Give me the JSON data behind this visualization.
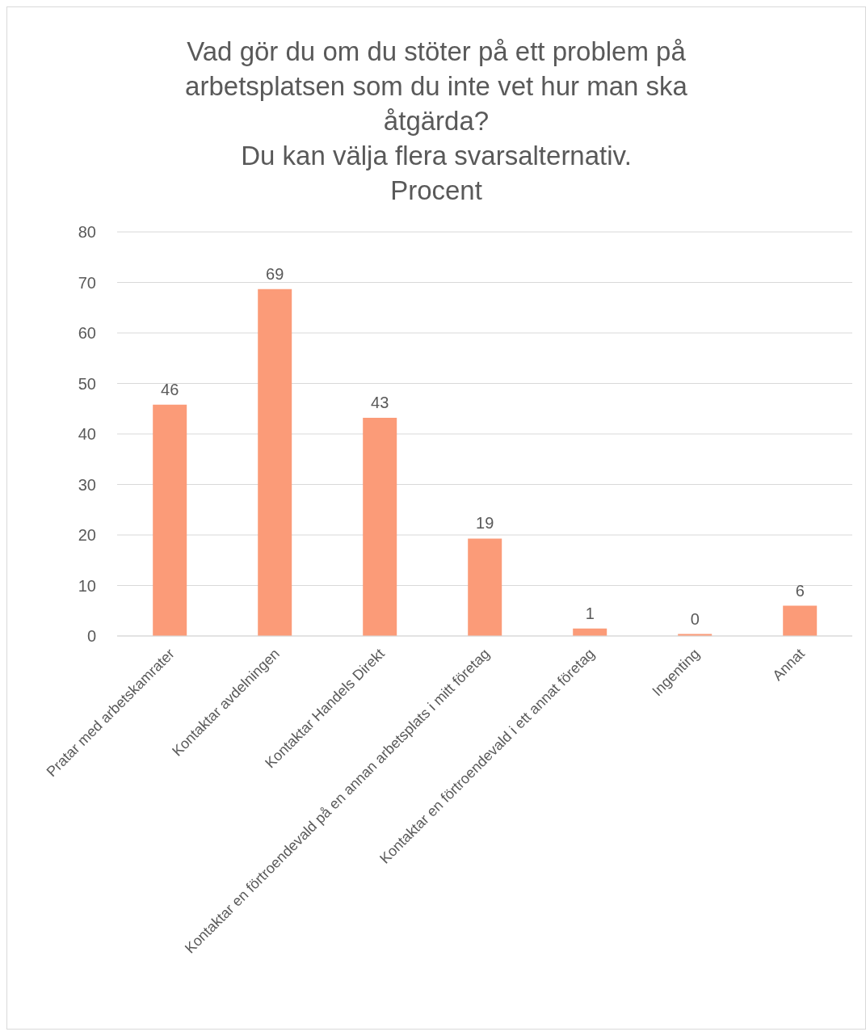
{
  "chart_data": {
    "type": "bar",
    "title": "Vad gör du om du stöter på ett problem på arbetsplatsen som du inte vet hur man ska åtgärda?",
    "subtitle": "Du kan välja flera svarsalternativ.",
    "ylabel": "Procent",
    "categories": [
      "Pratar med arbetskamrater",
      "Kontaktar avdelningen",
      "Kontaktar Handels Direkt",
      "Kontaktar en förtroendevald på en annan arbetsplats i mitt företag",
      "Kontaktar en förtroendevald i ett annat företag",
      "Ingenting",
      "Annat"
    ],
    "values": [
      45.8,
      68.7,
      43.2,
      19.3,
      1.5,
      0.4,
      6.0
    ],
    "value_labels": [
      "46",
      "69",
      "43",
      "19",
      "1",
      "0",
      "6"
    ],
    "color": "#fb9b78",
    "ylim": [
      0,
      80
    ],
    "yticks": [
      0,
      10,
      20,
      30,
      40,
      50,
      60,
      70,
      80
    ],
    "grid": "y"
  }
}
